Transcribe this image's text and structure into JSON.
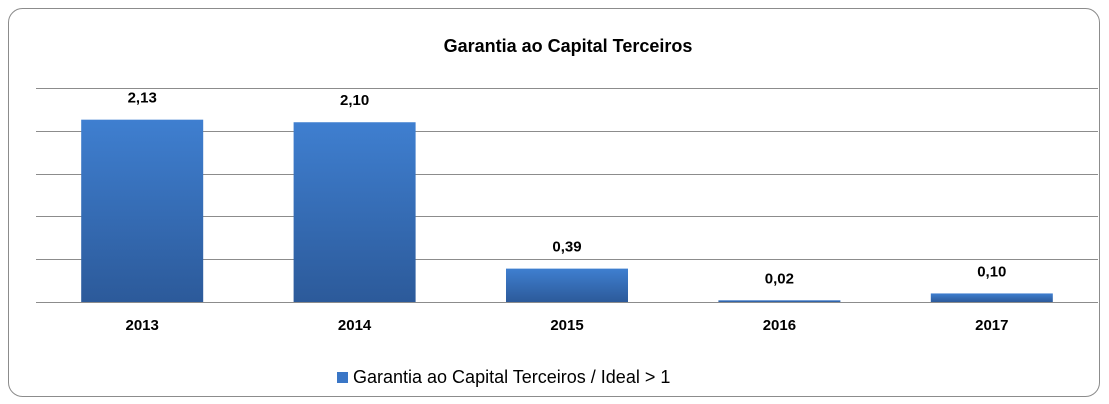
{
  "chart_data": {
    "type": "bar",
    "title": "Garantia ao Capital Terceiros",
    "categories": [
      "2013",
      "2014",
      "2015",
      "2016",
      "2017"
    ],
    "series": [
      {
        "name": "Garantia ao Capital Terceiros / Ideal > 1",
        "color": "#3a76c6",
        "values": [
          2.13,
          2.1,
          0.39,
          0.02,
          0.1
        ],
        "value_labels": [
          "2,13",
          "2,10",
          "0,39",
          "0,02",
          "0,10"
        ]
      }
    ],
    "ylim": [
      0,
      2.5
    ],
    "yticks": [
      0,
      0.5,
      1,
      1.5,
      2,
      2.5
    ],
    "grid": true,
    "legend": "bottom"
  }
}
